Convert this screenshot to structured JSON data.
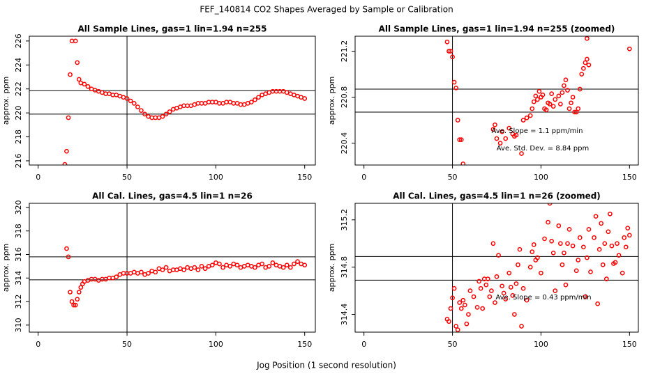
{
  "title": "FEF_140814  CO2 Shapes Averaged by Sample or Calibration",
  "xlabel": "Jog Position (1 second resolution)",
  "chart_data": [
    {
      "type": "scatter",
      "title": "All Sample Lines, gas=1 lin=1.94 n=255",
      "ylabel": "approx. ppm",
      "color": "#ff0000",
      "xlim": [
        -5,
        156
      ],
      "ylim": [
        215.65,
        226.4
      ],
      "xticks": [
        0,
        50,
        100,
        150
      ],
      "yticks": [
        216,
        218,
        220,
        222,
        224,
        226
      ],
      "hlines": [
        221.87,
        219.9
      ],
      "vlines": [
        50
      ],
      "x": [
        15,
        16,
        17,
        18,
        19,
        21,
        22,
        23,
        24,
        26,
        28,
        30,
        32,
        34,
        36,
        38,
        40,
        42,
        44,
        46,
        48,
        50,
        52,
        54,
        56,
        58,
        60,
        62,
        64,
        66,
        68,
        70,
        72,
        74,
        76,
        78,
        80,
        82,
        84,
        86,
        88,
        90,
        92,
        94,
        96,
        98,
        100,
        102,
        104,
        106,
        108,
        110,
        112,
        114,
        116,
        118,
        120,
        122,
        124,
        126,
        128,
        130,
        132,
        134,
        136,
        138,
        140,
        142,
        144,
        146,
        148,
        150
      ],
      "values": [
        215.7,
        216.8,
        219.6,
        223.2,
        226.0,
        226.0,
        224.2,
        222.8,
        222.5,
        222.4,
        222.2,
        222.0,
        221.9,
        221.8,
        221.7,
        221.6,
        221.6,
        221.5,
        221.5,
        221.4,
        221.3,
        221.2,
        221.0,
        220.8,
        220.5,
        220.2,
        219.9,
        219.7,
        219.6,
        219.6,
        219.6,
        219.7,
        219.9,
        220.1,
        220.3,
        220.4,
        220.5,
        220.6,
        220.6,
        220.6,
        220.7,
        220.8,
        220.8,
        220.8,
        220.9,
        220.9,
        220.9,
        220.8,
        220.8,
        220.9,
        220.9,
        220.8,
        220.8,
        220.7,
        220.7,
        220.8,
        220.9,
        221.1,
        221.3,
        221.5,
        221.6,
        221.7,
        221.8,
        221.8,
        221.8,
        221.8,
        221.7,
        221.6,
        221.5,
        221.4,
        221.3,
        221.2
      ]
    },
    {
      "type": "scatter",
      "title": "All Sample Lines, gas=1 lin=1.94 n=255 (zoomed)",
      "ylabel": "approx. ppm",
      "color": "#ff0000",
      "xlim": [
        -5,
        155
      ],
      "ylim": [
        220.21,
        221.33
      ],
      "xticks": [
        0,
        50,
        100,
        150
      ],
      "yticks": [
        220.4,
        220.8,
        221.2
      ],
      "hlines": [
        220.87,
        220.67
      ],
      "vlines": [
        50
      ],
      "annotations": [
        "Ave. Slope = 1.1  ppm/min",
        "Ave. Std. Dev. = 8.84  ppm"
      ],
      "x": [
        47,
        48,
        49,
        50,
        51,
        52,
        53,
        54,
        55,
        56,
        73,
        74,
        75,
        77,
        78,
        80,
        82,
        84,
        85,
        86,
        89,
        90,
        92,
        94,
        95,
        96,
        97,
        98,
        99,
        100,
        101,
        102,
        103,
        104,
        105,
        106,
        107,
        108,
        110,
        111,
        112,
        113,
        114,
        115,
        116,
        117,
        118,
        119,
        120,
        121,
        122,
        123,
        124,
        125,
        126,
        127,
        126,
        150
      ],
      "values": [
        221.28,
        221.2,
        221.2,
        221.15,
        220.93,
        220.88,
        220.6,
        220.43,
        220.43,
        220.22,
        220.52,
        220.56,
        220.44,
        220.4,
        220.5,
        220.44,
        220.53,
        220.48,
        220.46,
        220.47,
        220.31,
        220.6,
        220.62,
        220.64,
        220.7,
        220.76,
        220.81,
        220.78,
        220.85,
        220.8,
        220.82,
        220.7,
        220.69,
        220.75,
        220.74,
        220.83,
        220.72,
        220.78,
        220.81,
        220.74,
        220.84,
        220.9,
        220.95,
        220.86,
        220.7,
        220.75,
        220.8,
        220.67,
        220.67,
        220.7,
        220.87,
        221.0,
        221.05,
        221.1,
        221.13,
        221.08,
        221.31,
        221.22
      ]
    },
    {
      "type": "scatter",
      "title": "All Cal. Lines, gas=4.5 lin=1 n=26",
      "ylabel": "approx. ppm",
      "color": "#ff0000",
      "xlim": [
        -5,
        156
      ],
      "ylim": [
        309.4,
        320.35
      ],
      "xticks": [
        0,
        50,
        100,
        150
      ],
      "yticks": [
        310,
        312,
        314,
        316,
        318,
        320
      ],
      "hlines": [
        315.8,
        313.85
      ],
      "vlines": [
        50
      ],
      "x": [
        16,
        17,
        18,
        19,
        20,
        21,
        22,
        23,
        24,
        25,
        26,
        28,
        30,
        32,
        34,
        36,
        38,
        40,
        42,
        44,
        46,
        48,
        50,
        52,
        54,
        56,
        58,
        60,
        62,
        64,
        66,
        68,
        70,
        72,
        74,
        76,
        78,
        80,
        82,
        84,
        86,
        88,
        90,
        92,
        94,
        96,
        98,
        100,
        102,
        104,
        106,
        108,
        110,
        112,
        114,
        116,
        118,
        120,
        122,
        124,
        126,
        128,
        130,
        132,
        134,
        136,
        138,
        140,
        142,
        144,
        146,
        148,
        150
      ],
      "values": [
        316.5,
        315.8,
        312.8,
        312.0,
        311.7,
        311.7,
        312.2,
        312.8,
        313.2,
        313.5,
        313.7,
        313.8,
        313.9,
        313.9,
        313.8,
        313.9,
        313.9,
        314.0,
        314.0,
        314.1,
        314.3,
        314.4,
        314.4,
        314.4,
        314.5,
        314.4,
        314.5,
        314.3,
        314.4,
        314.6,
        314.5,
        314.8,
        314.7,
        314.9,
        314.6,
        314.7,
        314.7,
        314.8,
        314.7,
        314.9,
        314.8,
        314.9,
        314.7,
        315.0,
        314.8,
        315.0,
        315.1,
        315.3,
        315.2,
        314.9,
        315.1,
        315.0,
        315.2,
        315.1,
        314.9,
        315.0,
        315.1,
        315.0,
        314.9,
        315.1,
        315.2,
        314.9,
        315.0,
        315.3,
        315.1,
        315.0,
        314.9,
        315.1,
        314.9,
        315.2,
        315.4,
        315.2,
        315.1
      ]
    },
    {
      "type": "scatter",
      "title": "All Cal. Lines, gas=4.5 lin=1 n=26 (zoomed)",
      "ylabel": "approx. ppm",
      "color": "#ff0000",
      "xlim": [
        -5,
        155
      ],
      "ylim": [
        314.25,
        315.34
      ],
      "xticks": [
        0,
        50,
        100,
        150
      ],
      "yticks": [
        314.4,
        314.8,
        315.2
      ],
      "hlines": [
        314.89,
        314.69
      ],
      "vlines": [
        50
      ],
      "annotations": [
        "Ave. Slope =  0.43  ppm/min"
      ],
      "x": [
        47,
        48,
        49,
        50,
        51,
        52,
        53,
        54,
        55,
        56,
        57,
        58,
        59,
        60,
        62,
        64,
        65,
        66,
        67,
        68,
        69,
        70,
        71,
        72,
        73,
        74,
        75,
        76,
        78,
        79,
        80,
        82,
        83,
        84,
        85,
        86,
        87,
        88,
        89,
        90,
        92,
        94,
        95,
        96,
        97,
        98,
        100,
        102,
        104,
        105,
        106,
        107,
        108,
        110,
        111,
        112,
        113,
        114,
        115,
        116,
        118,
        120,
        121,
        122,
        124,
        125,
        126,
        127,
        128,
        130,
        131,
        132,
        133,
        134,
        135,
        136,
        137,
        138,
        139,
        140,
        141,
        142,
        143,
        144,
        146,
        147,
        148,
        149,
        150
      ],
      "values": [
        314.36,
        314.34,
        314.45,
        314.54,
        314.62,
        314.3,
        314.27,
        314.5,
        314.45,
        314.52,
        314.48,
        314.32,
        314.4,
        314.6,
        314.55,
        314.46,
        314.68,
        314.62,
        314.45,
        314.7,
        314.65,
        314.7,
        314.55,
        314.6,
        315.0,
        314.5,
        314.72,
        314.9,
        314.64,
        314.58,
        314.53,
        314.75,
        314.63,
        314.56,
        314.4,
        314.66,
        314.82,
        314.95,
        314.3,
        314.62,
        314.52,
        314.8,
        314.93,
        314.99,
        314.86,
        314.88,
        314.75,
        315.04,
        315.18,
        315.34,
        315.02,
        314.92,
        314.6,
        315.15,
        315.0,
        314.82,
        314.92,
        314.65,
        315.0,
        315.12,
        314.98,
        314.77,
        314.86,
        315.05,
        314.97,
        314.55,
        314.88,
        315.12,
        314.76,
        315.05,
        315.23,
        314.49,
        314.95,
        315.17,
        314.82,
        315.0,
        314.7,
        315.1,
        315.25,
        314.98,
        314.83,
        314.84,
        315.0,
        314.9,
        314.75,
        315.05,
        314.97,
        315.13,
        315.07
      ]
    }
  ]
}
